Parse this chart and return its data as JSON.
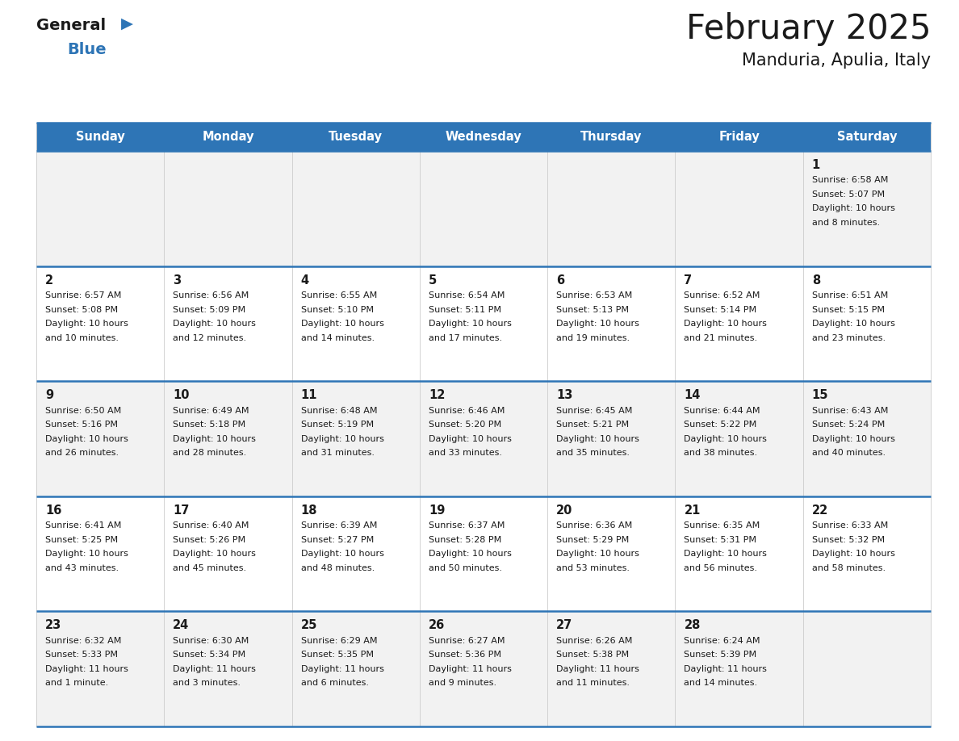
{
  "title": "February 2025",
  "subtitle": "Manduria, Apulia, Italy",
  "header_color": "#2e75b6",
  "header_text_color": "#ffffff",
  "day_names": [
    "Sunday",
    "Monday",
    "Tuesday",
    "Wednesday",
    "Thursday",
    "Friday",
    "Saturday"
  ],
  "title_color": "#1a1a1a",
  "subtitle_color": "#1a1a1a",
  "cell_bg_even": "#f2f2f2",
  "cell_bg_odd": "#ffffff",
  "line_color": "#2e75b6",
  "grid_color": "#cccccc",
  "number_color": "#1a1a1a",
  "text_color": "#1a1a1a",
  "logo_general_color": "#1a1a1a",
  "logo_blue_color": "#2e75b6",
  "calendar_data": [
    [
      null,
      null,
      null,
      null,
      null,
      null,
      {
        "day": 1,
        "sunrise": "6:58 AM",
        "sunset": "5:07 PM",
        "daylight": "10 hours\nand 8 minutes."
      }
    ],
    [
      {
        "day": 2,
        "sunrise": "6:57 AM",
        "sunset": "5:08 PM",
        "daylight": "10 hours\nand 10 minutes."
      },
      {
        "day": 3,
        "sunrise": "6:56 AM",
        "sunset": "5:09 PM",
        "daylight": "10 hours\nand 12 minutes."
      },
      {
        "day": 4,
        "sunrise": "6:55 AM",
        "sunset": "5:10 PM",
        "daylight": "10 hours\nand 14 minutes."
      },
      {
        "day": 5,
        "sunrise": "6:54 AM",
        "sunset": "5:11 PM",
        "daylight": "10 hours\nand 17 minutes."
      },
      {
        "day": 6,
        "sunrise": "6:53 AM",
        "sunset": "5:13 PM",
        "daylight": "10 hours\nand 19 minutes."
      },
      {
        "day": 7,
        "sunrise": "6:52 AM",
        "sunset": "5:14 PM",
        "daylight": "10 hours\nand 21 minutes."
      },
      {
        "day": 8,
        "sunrise": "6:51 AM",
        "sunset": "5:15 PM",
        "daylight": "10 hours\nand 23 minutes."
      }
    ],
    [
      {
        "day": 9,
        "sunrise": "6:50 AM",
        "sunset": "5:16 PM",
        "daylight": "10 hours\nand 26 minutes."
      },
      {
        "day": 10,
        "sunrise": "6:49 AM",
        "sunset": "5:18 PM",
        "daylight": "10 hours\nand 28 minutes."
      },
      {
        "day": 11,
        "sunrise": "6:48 AM",
        "sunset": "5:19 PM",
        "daylight": "10 hours\nand 31 minutes."
      },
      {
        "day": 12,
        "sunrise": "6:46 AM",
        "sunset": "5:20 PM",
        "daylight": "10 hours\nand 33 minutes."
      },
      {
        "day": 13,
        "sunrise": "6:45 AM",
        "sunset": "5:21 PM",
        "daylight": "10 hours\nand 35 minutes."
      },
      {
        "day": 14,
        "sunrise": "6:44 AM",
        "sunset": "5:22 PM",
        "daylight": "10 hours\nand 38 minutes."
      },
      {
        "day": 15,
        "sunrise": "6:43 AM",
        "sunset": "5:24 PM",
        "daylight": "10 hours\nand 40 minutes."
      }
    ],
    [
      {
        "day": 16,
        "sunrise": "6:41 AM",
        "sunset": "5:25 PM",
        "daylight": "10 hours\nand 43 minutes."
      },
      {
        "day": 17,
        "sunrise": "6:40 AM",
        "sunset": "5:26 PM",
        "daylight": "10 hours\nand 45 minutes."
      },
      {
        "day": 18,
        "sunrise": "6:39 AM",
        "sunset": "5:27 PM",
        "daylight": "10 hours\nand 48 minutes."
      },
      {
        "day": 19,
        "sunrise": "6:37 AM",
        "sunset": "5:28 PM",
        "daylight": "10 hours\nand 50 minutes."
      },
      {
        "day": 20,
        "sunrise": "6:36 AM",
        "sunset": "5:29 PM",
        "daylight": "10 hours\nand 53 minutes."
      },
      {
        "day": 21,
        "sunrise": "6:35 AM",
        "sunset": "5:31 PM",
        "daylight": "10 hours\nand 56 minutes."
      },
      {
        "day": 22,
        "sunrise": "6:33 AM",
        "sunset": "5:32 PM",
        "daylight": "10 hours\nand 58 minutes."
      }
    ],
    [
      {
        "day": 23,
        "sunrise": "6:32 AM",
        "sunset": "5:33 PM",
        "daylight": "11 hours\nand 1 minute."
      },
      {
        "day": 24,
        "sunrise": "6:30 AM",
        "sunset": "5:34 PM",
        "daylight": "11 hours\nand 3 minutes."
      },
      {
        "day": 25,
        "sunrise": "6:29 AM",
        "sunset": "5:35 PM",
        "daylight": "11 hours\nand 6 minutes."
      },
      {
        "day": 26,
        "sunrise": "6:27 AM",
        "sunset": "5:36 PM",
        "daylight": "11 hours\nand 9 minutes."
      },
      {
        "day": 27,
        "sunrise": "6:26 AM",
        "sunset": "5:38 PM",
        "daylight": "11 hours\nand 11 minutes."
      },
      {
        "day": 28,
        "sunrise": "6:24 AM",
        "sunset": "5:39 PM",
        "daylight": "11 hours\nand 14 minutes."
      },
      null
    ]
  ]
}
